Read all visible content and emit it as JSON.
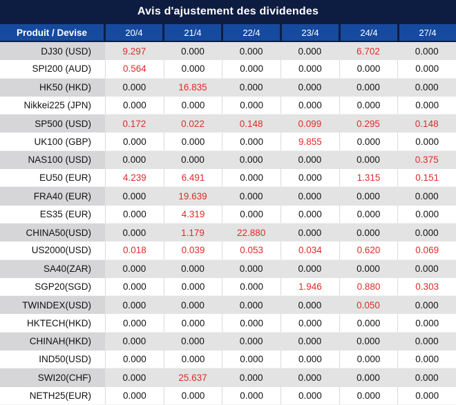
{
  "title": "Avis d'ajustement des dividendes",
  "table": {
    "product_header": "Produit / Devise",
    "date_columns": [
      "20/4",
      "21/4",
      "22/4",
      "23/4",
      "24/4",
      "27/4"
    ],
    "rows": [
      {
        "label": "DJ30 (USD)",
        "values": [
          "9.297",
          "0.000",
          "0.000",
          "0.000",
          "6.702",
          "0.000"
        ],
        "red": [
          true,
          false,
          false,
          false,
          true,
          false
        ]
      },
      {
        "label": "SPI200 (AUD)",
        "values": [
          "0.564",
          "0.000",
          "0.000",
          "0.000",
          "0.000",
          "0.000"
        ],
        "red": [
          true,
          false,
          false,
          false,
          false,
          false
        ]
      },
      {
        "label": "HK50 (HKD)",
        "values": [
          "0.000",
          "16.835",
          "0.000",
          "0.000",
          "0.000",
          "0.000"
        ],
        "red": [
          false,
          true,
          false,
          false,
          false,
          false
        ]
      },
      {
        "label": "Nikkei225 (JPN)",
        "values": [
          "0.000",
          "0.000",
          "0.000",
          "0.000",
          "0.000",
          "0.000"
        ],
        "red": [
          false,
          false,
          false,
          false,
          false,
          false
        ]
      },
      {
        "label": "SP500 (USD)",
        "values": [
          "0.172",
          "0.022",
          "0.148",
          "0.099",
          "0.295",
          "0.148"
        ],
        "red": [
          true,
          true,
          true,
          true,
          true,
          true
        ]
      },
      {
        "label": "UK100 (GBP)",
        "values": [
          "0.000",
          "0.000",
          "0.000",
          "9.855",
          "0.000",
          "0.000"
        ],
        "red": [
          false,
          false,
          false,
          true,
          false,
          false
        ]
      },
      {
        "label": "NAS100 (USD)",
        "values": [
          "0.000",
          "0.000",
          "0.000",
          "0.000",
          "0.000",
          "0.375"
        ],
        "red": [
          false,
          false,
          false,
          false,
          false,
          true
        ]
      },
      {
        "label": "EU50 (EUR)",
        "values": [
          "4.239",
          "6.491",
          "0.000",
          "0.000",
          "1.315",
          "0.151"
        ],
        "red": [
          true,
          true,
          false,
          false,
          true,
          true
        ]
      },
      {
        "label": "FRA40 (EUR)",
        "values": [
          "0.000",
          "19.639",
          "0.000",
          "0.000",
          "0.000",
          "0.000"
        ],
        "red": [
          false,
          true,
          false,
          false,
          false,
          false
        ]
      },
      {
        "label": "ES35 (EUR)",
        "values": [
          "0.000",
          "4.319",
          "0.000",
          "0.000",
          "0.000",
          "0.000"
        ],
        "red": [
          false,
          true,
          false,
          false,
          false,
          false
        ]
      },
      {
        "label": "CHINA50(USD)",
        "values": [
          "0.000",
          "1.179",
          "22.880",
          "0.000",
          "0.000",
          "0.000"
        ],
        "red": [
          false,
          true,
          true,
          false,
          false,
          false
        ]
      },
      {
        "label": "US2000(USD)",
        "values": [
          "0.018",
          "0.039",
          "0.053",
          "0.034",
          "0.620",
          "0.069"
        ],
        "red": [
          true,
          true,
          true,
          true,
          true,
          true
        ]
      },
      {
        "label": "SA40(ZAR)",
        "values": [
          "0.000",
          "0.000",
          "0.000",
          "0.000",
          "0.000",
          "0.000"
        ],
        "red": [
          false,
          false,
          false,
          false,
          false,
          false
        ]
      },
      {
        "label": "SGP20(SGD)",
        "values": [
          "0.000",
          "0.000",
          "0.000",
          "1.946",
          "0.880",
          "0.303"
        ],
        "red": [
          false,
          false,
          false,
          true,
          true,
          true
        ]
      },
      {
        "label": "TWINDEX(USD)",
        "values": [
          "0.000",
          "0.000",
          "0.000",
          "0.000",
          "0.050",
          "0.000"
        ],
        "red": [
          false,
          false,
          false,
          false,
          true,
          false
        ]
      },
      {
        "label": "HKTECH(HKD)",
        "values": [
          "0.000",
          "0.000",
          "0.000",
          "0.000",
          "0.000",
          "0.000"
        ],
        "red": [
          false,
          false,
          false,
          false,
          false,
          false
        ]
      },
      {
        "label": "CHINAH(HKD)",
        "values": [
          "0.000",
          "0.000",
          "0.000",
          "0.000",
          "0.000",
          "0.000"
        ],
        "red": [
          false,
          false,
          false,
          false,
          false,
          false
        ]
      },
      {
        "label": "IND50(USD)",
        "values": [
          "0.000",
          "0.000",
          "0.000",
          "0.000",
          "0.000",
          "0.000"
        ],
        "red": [
          false,
          false,
          false,
          false,
          false,
          false
        ]
      },
      {
        "label": "SWI20(CHF)",
        "values": [
          "0.000",
          "25.637",
          "0.000",
          "0.000",
          "0.000",
          "0.000"
        ],
        "red": [
          false,
          true,
          false,
          false,
          false,
          false
        ]
      },
      {
        "label": "NETH25(EUR)",
        "values": [
          "0.000",
          "0.000",
          "0.000",
          "0.000",
          "0.000",
          "0.000"
        ],
        "red": [
          false,
          false,
          false,
          false,
          false,
          false
        ]
      }
    ]
  },
  "colors": {
    "title_bar_bg": "#0d1d42",
    "header_bg": "#164a9e",
    "row_alt_bg": "#e3e3e3",
    "first_col_alt_bg": "#d6d6d9",
    "red_value": "#de2a28",
    "text": "#111111"
  }
}
